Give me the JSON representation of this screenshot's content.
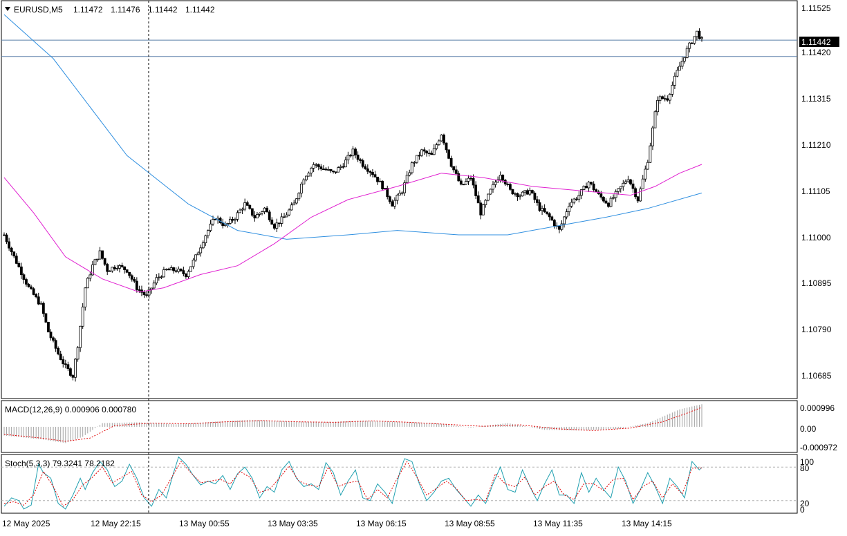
{
  "symbol_header": {
    "symbol": "EURUSD,M5",
    "ohlc": [
      "1.11472",
      "1.11476",
      "1.11442",
      "1.11442"
    ]
  },
  "colors": {
    "bull_candle": "#ffffff",
    "bear_candle": "#000000",
    "ma_fast": "#e020d0",
    "ma_slow": "#2f8fe0",
    "macd_signal": "#e00000",
    "stoch_main": "#20a0b0",
    "stoch_signal": "#e00000",
    "grid": "#000000",
    "background": "#ffffff"
  },
  "price_axis": {
    "labels": [
      "1.11525",
      "1.11420",
      "1.11315",
      "1.11210",
      "1.11105",
      "1.11000",
      "1.10895",
      "1.10790",
      "1.10685"
    ],
    "current_price": "1.11442"
  },
  "macd_panel": {
    "label": "MACD(12,26,9) 0.000906 0.000780",
    "axis_labels": [
      "0.000996",
      "0.00",
      "-0.000972"
    ]
  },
  "stoch_panel": {
    "label": "Stoch(5,3,3) 79.3241 78.2182",
    "axis_labels": [
      "100",
      "80",
      "20",
      "0"
    ]
  },
  "time_axis": {
    "labels": [
      "12 May 2025",
      "12 May 22:15",
      "13 May 00:55",
      "13 May 03:35",
      "13 May 06:15",
      "13 May 08:55",
      "13 May 11:35",
      "13 May 14:15"
    ]
  },
  "chart_data": [
    {
      "type": "candlestick",
      "title": "EURUSD,M5",
      "timeframe": "M5",
      "ylim": [
        1.1063,
        1.1153
      ],
      "horizontal_levels": [
        1.11442,
        1.11405
      ],
      "series_path": [
        [
          0,
          1.11
        ],
        [
          4,
          1.1095
        ],
        [
          10,
          1.1088
        ],
        [
          15,
          1.1084
        ],
        [
          18,
          1.1078
        ],
        [
          22,
          1.1073
        ],
        [
          25,
          1.107
        ],
        [
          28,
          1.1068
        ],
        [
          30,
          1.1075
        ],
        [
          33,
          1.1088
        ],
        [
          36,
          1.1093
        ],
        [
          39,
          1.1096
        ],
        [
          42,
          1.1092
        ],
        [
          46,
          1.1093
        ],
        [
          50,
          1.1092
        ],
        [
          54,
          1.1088
        ],
        [
          58,
          1.1086
        ],
        [
          62,
          1.109
        ],
        [
          66,
          1.1092
        ],
        [
          70,
          1.1092
        ],
        [
          74,
          1.1091
        ],
        [
          78,
          1.1095
        ],
        [
          82,
          1.11
        ],
        [
          86,
          1.1104
        ],
        [
          90,
          1.1102
        ],
        [
          94,
          1.1104
        ],
        [
          98,
          1.1107
        ],
        [
          102,
          1.1104
        ],
        [
          106,
          1.1106
        ],
        [
          110,
          1.1102
        ],
        [
          114,
          1.1104
        ],
        [
          118,
          1.1107
        ],
        [
          122,
          1.1113
        ],
        [
          126,
          1.1116
        ],
        [
          130,
          1.1115
        ],
        [
          134,
          1.1114
        ],
        [
          138,
          1.1116
        ],
        [
          142,
          1.1119
        ],
        [
          146,
          1.1116
        ],
        [
          150,
          1.1114
        ],
        [
          154,
          1.1111
        ],
        [
          158,
          1.1107
        ],
        [
          162,
          1.111
        ],
        [
          166,
          1.1116
        ],
        [
          170,
          1.1119
        ],
        [
          174,
          1.1118
        ],
        [
          178,
          1.1123
        ],
        [
          182,
          1.1116
        ],
        [
          186,
          1.1111
        ],
        [
          190,
          1.1113
        ],
        [
          194,
          1.1105
        ],
        [
          198,
          1.111
        ],
        [
          202,
          1.1114
        ],
        [
          206,
          1.111
        ],
        [
          210,
          1.1109
        ],
        [
          214,
          1.111
        ],
        [
          218,
          1.1106
        ],
        [
          222,
          1.1104
        ],
        [
          226,
          1.1101
        ],
        [
          230,
          1.1107
        ],
        [
          234,
          1.1109
        ],
        [
          238,
          1.1112
        ],
        [
          242,
          1.1109
        ],
        [
          246,
          1.1107
        ],
        [
          250,
          1.111
        ],
        [
          254,
          1.1113
        ],
        [
          258,
          1.1108
        ],
        [
          262,
          1.1117
        ],
        [
          266,
          1.1131
        ],
        [
          270,
          1.1131
        ],
        [
          274,
          1.1137
        ],
        [
          278,
          1.1142
        ],
        [
          282,
          1.1146
        ],
        [
          284,
          1.11442
        ]
      ],
      "moving_averages": [
        {
          "period_color": "ma_slow",
          "points": [
            [
              0,
              1.115
            ],
            [
              20,
              1.114
            ],
            [
              50,
              1.1118
            ],
            [
              75,
              1.1107
            ],
            [
              95,
              1.1101
            ],
            [
              115,
              1.1099
            ],
            [
              140,
              1.11
            ],
            [
              160,
              1.1101
            ],
            [
              185,
              1.11
            ],
            [
              205,
              1.11
            ],
            [
              225,
              1.1102
            ],
            [
              245,
              1.1104
            ],
            [
              262,
              1.1106
            ],
            [
              284,
              1.11095
            ]
          ]
        },
        {
          "period_color": "ma_fast",
          "points": [
            [
              0,
              1.1113
            ],
            [
              12,
              1.1105
            ],
            [
              25,
              1.1095
            ],
            [
              40,
              1.109
            ],
            [
              55,
              1.1087
            ],
            [
              65,
              1.1088
            ],
            [
              80,
              1.1091
            ],
            [
              95,
              1.1093
            ],
            [
              110,
              1.1098
            ],
            [
              125,
              1.1104
            ],
            [
              140,
              1.1108
            ],
            [
              160,
              1.1111
            ],
            [
              178,
              1.1114
            ],
            [
              195,
              1.1113
            ],
            [
              215,
              1.1111
            ],
            [
              235,
              1.111
            ],
            [
              255,
              1.1109
            ],
            [
              265,
              1.1111
            ],
            [
              275,
              1.1114
            ],
            [
              284,
              1.1116
            ]
          ]
        }
      ]
    },
    {
      "type": "bar",
      "title": "MACD(12,26,9) 0.000906 0.000780",
      "ylim": [
        -0.000972,
        0.000996
      ],
      "macd_histogram_points": [
        [
          0,
          -0.00035
        ],
        [
          15,
          -0.0005
        ],
        [
          25,
          -0.00065
        ],
        [
          32,
          -0.0004
        ],
        [
          40,
          0.00015
        ],
        [
          55,
          0.00018
        ],
        [
          70,
          0.0001
        ],
        [
          85,
          0.0002
        ],
        [
          100,
          0.00028
        ],
        [
          115,
          0.00022
        ],
        [
          130,
          0.00018
        ],
        [
          145,
          0.00025
        ],
        [
          160,
          0.0002
        ],
        [
          175,
          0.00015
        ],
        [
          190,
          -3e-05
        ],
        [
          205,
          0.00015
        ],
        [
          220,
          -0.00012
        ],
        [
          235,
          -0.00015
        ],
        [
          250,
          -8e-05
        ],
        [
          262,
          0.00015
        ],
        [
          275,
          0.0007
        ],
        [
          284,
          0.000906
        ]
      ],
      "signal_points": [
        [
          0,
          -0.0003
        ],
        [
          15,
          -0.00045
        ],
        [
          25,
          -0.00058
        ],
        [
          35,
          -0.00045
        ],
        [
          45,
          5e-05
        ],
        [
          60,
          0.00015
        ],
        [
          75,
          0.00012
        ],
        [
          90,
          0.0002
        ],
        [
          105,
          0.00025
        ],
        [
          120,
          0.0002
        ],
        [
          135,
          0.00018
        ],
        [
          150,
          0.00024
        ],
        [
          165,
          0.00018
        ],
        [
          180,
          0.0001
        ],
        [
          195,
          2e-05
        ],
        [
          210,
          8e-05
        ],
        [
          225,
          -8e-05
        ],
        [
          240,
          -0.00015
        ],
        [
          255,
          -5e-05
        ],
        [
          268,
          0.0002
        ],
        [
          278,
          0.00055
        ],
        [
          284,
          0.00078
        ]
      ]
    },
    {
      "type": "line",
      "title": "Stoch(5,3,3) 79.3241 78.2182",
      "ylim": [
        0,
        100
      ],
      "levels": [
        80,
        20
      ],
      "main_points": [
        [
          0,
          10
        ],
        [
          3,
          25
        ],
        [
          6,
          20
        ],
        [
          8,
          5
        ],
        [
          11,
          12
        ],
        [
          14,
          85
        ],
        [
          16,
          70
        ],
        [
          19,
          60
        ],
        [
          22,
          15
        ],
        [
          25,
          5
        ],
        [
          28,
          30
        ],
        [
          31,
          60
        ],
        [
          33,
          40
        ],
        [
          36,
          70
        ],
        [
          39,
          90
        ],
        [
          42,
          75
        ],
        [
          45,
          45
        ],
        [
          48,
          55
        ],
        [
          51,
          85
        ],
        [
          54,
          60
        ],
        [
          57,
          25
        ],
        [
          60,
          10
        ],
        [
          63,
          40
        ],
        [
          66,
          25
        ],
        [
          69,
          70
        ],
        [
          71,
          98
        ],
        [
          74,
          85
        ],
        [
          77,
          65
        ],
        [
          80,
          48
        ],
        [
          83,
          55
        ],
        [
          86,
          50
        ],
        [
          89,
          65
        ],
        [
          92,
          40
        ],
        [
          95,
          68
        ],
        [
          98,
          80
        ],
        [
          101,
          60
        ],
        [
          104,
          25
        ],
        [
          107,
          45
        ],
        [
          110,
          35
        ],
        [
          113,
          75
        ],
        [
          116,
          90
        ],
        [
          119,
          60
        ],
        [
          122,
          45
        ],
        [
          125,
          50
        ],
        [
          128,
          40
        ],
        [
          131,
          88
        ],
        [
          134,
          70
        ],
        [
          137,
          30
        ],
        [
          140,
          55
        ],
        [
          143,
          75
        ],
        [
          146,
          25
        ],
        [
          149,
          20
        ],
        [
          152,
          50
        ],
        [
          155,
          35
        ],
        [
          158,
          15
        ],
        [
          161,
          70
        ],
        [
          163,
          95
        ],
        [
          166,
          90
        ],
        [
          169,
          50
        ],
        [
          172,
          20
        ],
        [
          175,
          35
        ],
        [
          178,
          55
        ],
        [
          181,
          60
        ],
        [
          184,
          40
        ],
        [
          187,
          25
        ],
        [
          190,
          10
        ],
        [
          193,
          30
        ],
        [
          196,
          15
        ],
        [
          199,
          50
        ],
        [
          202,
          80
        ],
        [
          205,
          40
        ],
        [
          208,
          35
        ],
        [
          211,
          75
        ],
        [
          214,
          45
        ],
        [
          217,
          20
        ],
        [
          220,
          50
        ],
        [
          223,
          75
        ],
        [
          226,
          30
        ],
        [
          229,
          30
        ],
        [
          232,
          15
        ],
        [
          235,
          70
        ],
        [
          238,
          35
        ],
        [
          241,
          60
        ],
        [
          244,
          40
        ],
        [
          247,
          25
        ],
        [
          250,
          80
        ],
        [
          253,
          55
        ],
        [
          256,
          15
        ],
        [
          259,
          40
        ],
        [
          262,
          70
        ],
        [
          265,
          45
        ],
        [
          268,
          15
        ],
        [
          271,
          60
        ],
        [
          274,
          45
        ],
        [
          277,
          25
        ],
        [
          280,
          90
        ],
        [
          283,
          75
        ],
        [
          284,
          79.3241
        ]
      ],
      "signal_points": [
        [
          0,
          15
        ],
        [
          4,
          18
        ],
        [
          8,
          12
        ],
        [
          12,
          30
        ],
        [
          16,
          72
        ],
        [
          20,
          45
        ],
        [
          24,
          10
        ],
        [
          28,
          22
        ],
        [
          32,
          48
        ],
        [
          36,
          62
        ],
        [
          40,
          80
        ],
        [
          44,
          52
        ],
        [
          48,
          62
        ],
        [
          52,
          72
        ],
        [
          56,
          30
        ],
        [
          60,
          18
        ],
        [
          64,
          30
        ],
        [
          68,
          60
        ],
        [
          72,
          90
        ],
        [
          76,
          70
        ],
        [
          80,
          52
        ],
        [
          84,
          55
        ],
        [
          88,
          58
        ],
        [
          92,
          50
        ],
        [
          96,
          72
        ],
        [
          100,
          62
        ],
        [
          104,
          35
        ],
        [
          108,
          40
        ],
        [
          112,
          60
        ],
        [
          116,
          82
        ],
        [
          120,
          55
        ],
        [
          124,
          48
        ],
        [
          128,
          45
        ],
        [
          132,
          80
        ],
        [
          136,
          45
        ],
        [
          140,
          52
        ],
        [
          144,
          55
        ],
        [
          148,
          22
        ],
        [
          152,
          40
        ],
        [
          156,
          25
        ],
        [
          160,
          60
        ],
        [
          164,
          90
        ],
        [
          168,
          62
        ],
        [
          172,
          30
        ],
        [
          176,
          42
        ],
        [
          180,
          55
        ],
        [
          184,
          42
        ],
        [
          188,
          20
        ],
        [
          192,
          22
        ],
        [
          196,
          20
        ],
        [
          200,
          68
        ],
        [
          204,
          50
        ],
        [
          208,
          45
        ],
        [
          212,
          62
        ],
        [
          216,
          30
        ],
        [
          220,
          45
        ],
        [
          224,
          55
        ],
        [
          228,
          30
        ],
        [
          232,
          22
        ],
        [
          236,
          50
        ],
        [
          240,
          50
        ],
        [
          244,
          38
        ],
        [
          248,
          58
        ],
        [
          252,
          60
        ],
        [
          256,
          22
        ],
        [
          260,
          45
        ],
        [
          264,
          55
        ],
        [
          268,
          25
        ],
        [
          272,
          50
        ],
        [
          276,
          32
        ],
        [
          280,
          78
        ],
        [
          284,
          78.2182
        ]
      ]
    }
  ]
}
